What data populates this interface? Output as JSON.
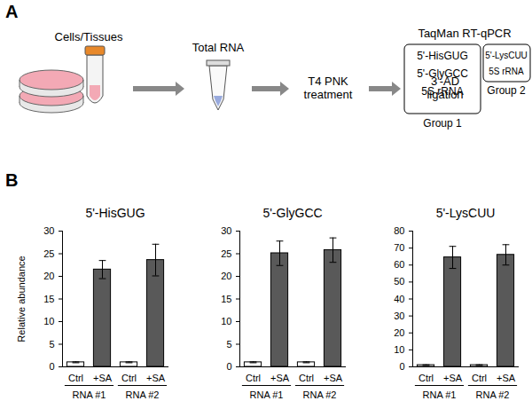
{
  "panel_labels": [
    "A",
    "B"
  ],
  "diagram": {
    "steps": [
      {
        "lines": [
          "Cells/Tissues"
        ]
      },
      {
        "lines": [
          "Total RNA"
        ]
      },
      {
        "lines": [
          "T4 PNK",
          "treatment"
        ]
      },
      {
        "lines": [
          "3'-AD",
          "ligation"
        ]
      }
    ],
    "assay": {
      "title": "TaqMan RT-qPCR",
      "groups": [
        {
          "label": "Group 1",
          "items": [
            "5'-HisGUG",
            "5'-GlyGCC",
            "5S rRNA"
          ]
        },
        {
          "label": "Group 2",
          "items": [
            "5'-LysCUU",
            "5S rRNA"
          ]
        }
      ]
    }
  },
  "chart_data": [
    {
      "type": "bar",
      "title": "5'-HisGUG",
      "ylabel": "Relative abundance",
      "categories": [
        "Ctrl",
        "+SA",
        "Ctrl",
        "+SA"
      ],
      "groups": [
        "RNA #1",
        "RNA #1",
        "RNA #2",
        "RNA #2"
      ],
      "values": [
        1,
        21.5,
        1,
        23.6
      ],
      "errors": [
        0.1,
        2.0,
        0.1,
        3.5
      ],
      "colors": [
        "#ffffff",
        "#595959",
        "#ffffff",
        "#595959"
      ],
      "ylim": [
        0,
        30
      ],
      "yticks": [
        0,
        5,
        10,
        15,
        20,
        25,
        30
      ]
    },
    {
      "type": "bar",
      "title": "5'-GlyGCC",
      "categories": [
        "Ctrl",
        "+SA",
        "Ctrl",
        "+SA"
      ],
      "groups": [
        "RNA #1",
        "RNA #1",
        "RNA #2",
        "RNA #2"
      ],
      "values": [
        1,
        25.1,
        1,
        25.8
      ],
      "errors": [
        0.1,
        2.7,
        0.1,
        2.7
      ],
      "colors": [
        "#ffffff",
        "#595959",
        "#ffffff",
        "#595959"
      ],
      "ylim": [
        0,
        30
      ],
      "yticks": [
        0,
        5,
        10,
        15,
        20,
        25,
        30
      ]
    },
    {
      "type": "bar",
      "title": "5'-LysCUU",
      "categories": [
        "Ctrl",
        "+SA",
        "Ctrl",
        "+SA"
      ],
      "groups": [
        "RNA #1",
        "RNA #1",
        "RNA #2",
        "RNA #2"
      ],
      "values": [
        1,
        64.5,
        1,
        66
      ],
      "errors": [
        0.2,
        6.5,
        0.2,
        6
      ],
      "colors": [
        "#ffffff",
        "#595959",
        "#ffffff",
        "#595959"
      ],
      "ylim": [
        0,
        80
      ],
      "yticks": [
        0,
        10,
        20,
        30,
        40,
        50,
        60,
        70,
        80
      ]
    }
  ]
}
